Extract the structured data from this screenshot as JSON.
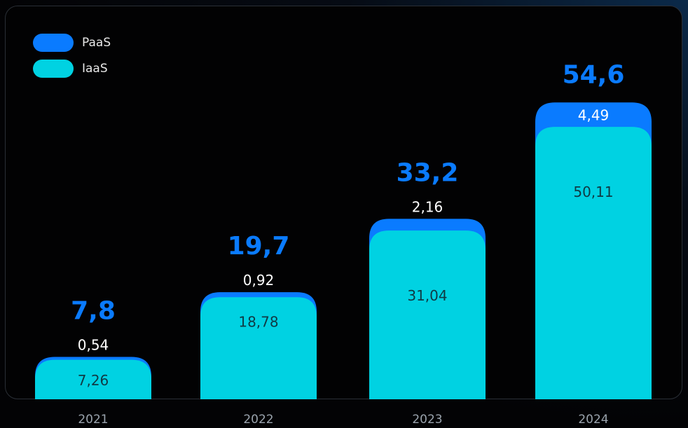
{
  "legend": [
    {
      "label": "PaaS",
      "color": "#0a7bff"
    },
    {
      "label": "IaaS",
      "color": "#00d2e2"
    }
  ],
  "chart_data": {
    "type": "bar",
    "stacked": true,
    "categories": [
      "2021",
      "2022",
      "2023",
      "2024"
    ],
    "series": [
      {
        "name": "IaaS",
        "color": "#00d2e2",
        "values": [
          7.26,
          18.78,
          31.04,
          50.11
        ],
        "labels": [
          "7,26",
          "18,78",
          "31,04",
          "50,11"
        ]
      },
      {
        "name": "PaaS",
        "color": "#0a7bff",
        "values": [
          0.54,
          0.92,
          2.16,
          4.49
        ],
        "labels": [
          "0,54",
          "0,92",
          "2,16",
          "4,49"
        ]
      }
    ],
    "totals": [
      "7,8",
      "19,7",
      "33,2",
      "54,6"
    ],
    "total_color": "#0a7bff",
    "grid": false,
    "legend_position": "top-left"
  }
}
